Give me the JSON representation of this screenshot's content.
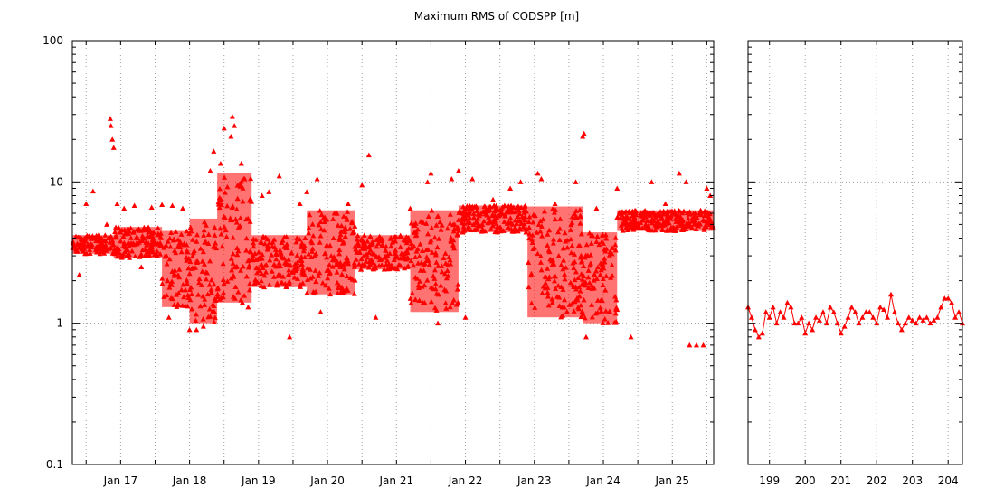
{
  "chart_data": [
    {
      "type": "scatter",
      "title": "Maximum RMS of CODSPP [m]",
      "xlabel": "",
      "ylabel": "",
      "yscale": "log",
      "ylim": [
        0.1,
        100
      ],
      "y_ticks": [
        "0.1",
        "1",
        "10",
        "100"
      ],
      "x_unit": "day",
      "xlim": [
        16.3,
        25.6
      ],
      "x_ticks": [
        {
          "value": 17,
          "label": "Jan 17"
        },
        {
          "value": 18,
          "label": "Jan 18"
        },
        {
          "value": 19,
          "label": "Jan 19"
        },
        {
          "value": 20,
          "label": "Jan 20"
        },
        {
          "value": 21,
          "label": "Jan 21"
        },
        {
          "value": 22,
          "label": "Jan 22"
        },
        {
          "value": 23,
          "label": "Jan 23"
        },
        {
          "value": 24,
          "label": "Jan 24"
        },
        {
          "value": 25,
          "label": "Jan 25"
        }
      ],
      "marker": "triangle",
      "color": "#ff0000",
      "grid": true,
      "bands": [
        {
          "from": 16.3,
          "to": 16.9,
          "low": 3.1,
          "high": 4.2
        },
        {
          "from": 16.9,
          "to": 17.6,
          "low": 2.9,
          "high": 4.8
        },
        {
          "from": 17.6,
          "to": 18.0,
          "low": 1.3,
          "high": 4.5
        },
        {
          "from": 18.0,
          "to": 18.4,
          "low": 1.0,
          "high": 5.5
        },
        {
          "from": 18.4,
          "to": 18.9,
          "low": 1.4,
          "high": 11.5
        },
        {
          "from": 18.9,
          "to": 19.7,
          "low": 1.8,
          "high": 4.2
        },
        {
          "from": 19.7,
          "to": 20.4,
          "low": 1.6,
          "high": 6.3
        },
        {
          "from": 20.4,
          "to": 21.2,
          "low": 2.4,
          "high": 4.2
        },
        {
          "from": 21.2,
          "to": 21.9,
          "low": 1.2,
          "high": 6.3
        },
        {
          "from": 21.9,
          "to": 22.9,
          "low": 4.4,
          "high": 6.8
        },
        {
          "from": 22.9,
          "to": 23.7,
          "low": 1.1,
          "high": 6.7
        },
        {
          "from": 23.7,
          "to": 24.2,
          "low": 1.0,
          "high": 4.4
        },
        {
          "from": 24.2,
          "to": 25.6,
          "low": 4.5,
          "high": 6.3
        }
      ],
      "points": [
        {
          "x": 16.4,
          "y": 2.2
        },
        {
          "x": 16.5,
          "y": 7.0
        },
        {
          "x": 16.6,
          "y": 8.6
        },
        {
          "x": 16.8,
          "y": 5.0
        },
        {
          "x": 16.85,
          "y": 28.0
        },
        {
          "x": 16.86,
          "y": 25.0
        },
        {
          "x": 16.88,
          "y": 20.0
        },
        {
          "x": 16.9,
          "y": 17.5
        },
        {
          "x": 16.95,
          "y": 7.0
        },
        {
          "x": 17.05,
          "y": 6.5
        },
        {
          "x": 17.2,
          "y": 6.8
        },
        {
          "x": 17.3,
          "y": 2.5
        },
        {
          "x": 17.45,
          "y": 6.6
        },
        {
          "x": 17.6,
          "y": 6.9
        },
        {
          "x": 17.7,
          "y": 1.1
        },
        {
          "x": 17.75,
          "y": 6.8
        },
        {
          "x": 17.9,
          "y": 6.5
        },
        {
          "x": 18.0,
          "y": 0.9
        },
        {
          "x": 18.1,
          "y": 0.9
        },
        {
          "x": 18.2,
          "y": 0.95
        },
        {
          "x": 18.3,
          "y": 12.0
        },
        {
          "x": 18.35,
          "y": 16.5
        },
        {
          "x": 18.45,
          "y": 13.5
        },
        {
          "x": 18.5,
          "y": 24.0
        },
        {
          "x": 18.6,
          "y": 21.0
        },
        {
          "x": 18.62,
          "y": 29.0
        },
        {
          "x": 18.65,
          "y": 25.0
        },
        {
          "x": 18.75,
          "y": 13.5
        },
        {
          "x": 18.8,
          "y": 10.5
        },
        {
          "x": 18.85,
          "y": 1.3
        },
        {
          "x": 19.05,
          "y": 8.0
        },
        {
          "x": 19.15,
          "y": 8.5
        },
        {
          "x": 19.3,
          "y": 11.0
        },
        {
          "x": 19.45,
          "y": 0.8
        },
        {
          "x": 19.6,
          "y": 7.0
        },
        {
          "x": 19.7,
          "y": 8.5
        },
        {
          "x": 19.85,
          "y": 10.5
        },
        {
          "x": 19.9,
          "y": 1.2
        },
        {
          "x": 20.1,
          "y": 6.0
        },
        {
          "x": 20.3,
          "y": 7.0
        },
        {
          "x": 20.5,
          "y": 9.5
        },
        {
          "x": 20.6,
          "y": 15.5
        },
        {
          "x": 20.7,
          "y": 1.1
        },
        {
          "x": 20.95,
          "y": 3.8
        },
        {
          "x": 21.2,
          "y": 6.5
        },
        {
          "x": 21.45,
          "y": 10.0
        },
        {
          "x": 21.5,
          "y": 11.5
        },
        {
          "x": 21.6,
          "y": 1.0
        },
        {
          "x": 21.8,
          "y": 10.5
        },
        {
          "x": 21.9,
          "y": 12.0
        },
        {
          "x": 22.0,
          "y": 1.1
        },
        {
          "x": 22.1,
          "y": 10.5
        },
        {
          "x": 22.4,
          "y": 7.5
        },
        {
          "x": 22.65,
          "y": 9.0
        },
        {
          "x": 22.8,
          "y": 10.0
        },
        {
          "x": 23.05,
          "y": 11.5
        },
        {
          "x": 23.1,
          "y": 10.5
        },
        {
          "x": 23.3,
          "y": 7.0
        },
        {
          "x": 23.6,
          "y": 10.0
        },
        {
          "x": 23.7,
          "y": 21.0
        },
        {
          "x": 23.72,
          "y": 22.0
        },
        {
          "x": 23.75,
          "y": 0.8
        },
        {
          "x": 23.9,
          "y": 6.5
        },
        {
          "x": 24.2,
          "y": 9.0
        },
        {
          "x": 24.4,
          "y": 0.8
        },
        {
          "x": 24.7,
          "y": 10.0
        },
        {
          "x": 24.9,
          "y": 7.0
        },
        {
          "x": 25.1,
          "y": 11.5
        },
        {
          "x": 25.2,
          "y": 10.0
        },
        {
          "x": 25.25,
          "y": 0.7
        },
        {
          "x": 25.35,
          "y": 0.7
        },
        {
          "x": 25.45,
          "y": 0.7
        },
        {
          "x": 25.5,
          "y": 9.0
        },
        {
          "x": 25.55,
          "y": 8.0
        }
      ]
    },
    {
      "type": "line",
      "title": "",
      "xlabel": "",
      "ylabel": "",
      "yscale": "log",
      "ylim": [
        0.1,
        100
      ],
      "xlim": [
        198.4,
        204.4
      ],
      "x_ticks": [
        {
          "value": 199,
          "label": "199"
        },
        {
          "value": 200,
          "label": "200"
        },
        {
          "value": 201,
          "label": "201"
        },
        {
          "value": 202,
          "label": "202"
        },
        {
          "value": 203,
          "label": "203"
        },
        {
          "value": 204,
          "label": "204"
        }
      ],
      "marker": "triangle",
      "color": "#ff0000",
      "grid": true,
      "x": [
        198.4,
        198.5,
        198.6,
        198.7,
        198.8,
        198.9,
        199.0,
        199.1,
        199.2,
        199.3,
        199.4,
        199.5,
        199.6,
        199.7,
        199.8,
        199.9,
        200.0,
        200.1,
        200.2,
        200.3,
        200.4,
        200.5,
        200.6,
        200.7,
        200.8,
        200.9,
        201.0,
        201.1,
        201.2,
        201.3,
        201.4,
        201.5,
        201.6,
        201.7,
        201.8,
        201.9,
        202.0,
        202.1,
        202.2,
        202.3,
        202.4,
        202.5,
        202.6,
        202.7,
        202.8,
        202.9,
        203.0,
        203.1,
        203.2,
        203.3,
        203.4,
        203.5,
        203.6,
        203.7,
        203.8,
        203.9,
        204.0,
        204.1,
        204.2,
        204.3,
        204.4
      ],
      "y": [
        1.3,
        1.1,
        0.9,
        0.8,
        0.85,
        1.2,
        1.1,
        1.3,
        1.0,
        1.2,
        1.1,
        1.4,
        1.3,
        1.0,
        1.0,
        1.1,
        0.85,
        1.0,
        0.9,
        1.1,
        1.05,
        1.2,
        1.0,
        1.3,
        1.2,
        1.0,
        0.85,
        0.95,
        1.1,
        1.3,
        1.2,
        1.0,
        1.1,
        1.2,
        1.2,
        1.1,
        1.0,
        1.3,
        1.25,
        1.1,
        1.6,
        1.2,
        1.0,
        0.9,
        1.0,
        1.1,
        1.05,
        1.0,
        1.1,
        1.05,
        1.1,
        1.0,
        1.05,
        1.1,
        1.3,
        1.5,
        1.5,
        1.4,
        1.1,
        1.2,
        1.0
      ]
    }
  ]
}
